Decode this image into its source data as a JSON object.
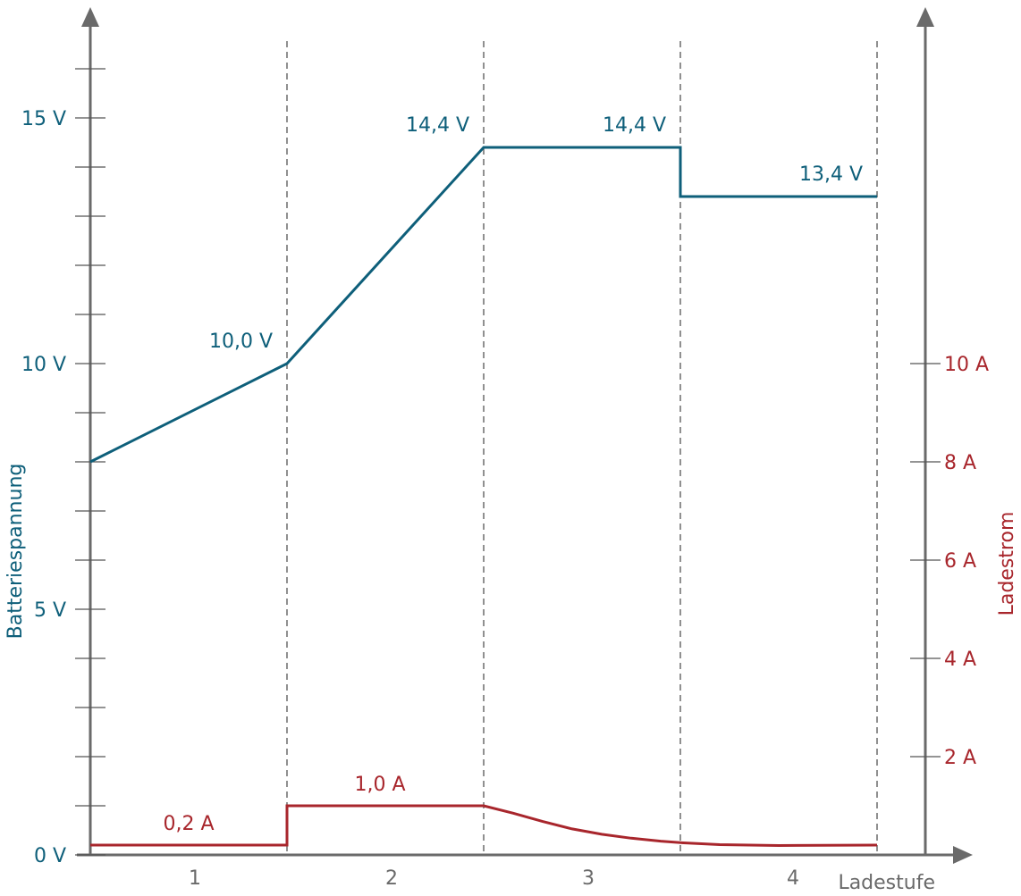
{
  "chart_data": {
    "type": "line",
    "xlabel": "Ladestufe",
    "categories": [
      "1",
      "2",
      "3",
      "4"
    ],
    "y_left": {
      "label": "Batteriespannung",
      "ylim": [
        0,
        16.5
      ],
      "ticks": [
        0,
        1,
        2,
        3,
        4,
        5,
        6,
        7,
        8,
        9,
        10,
        11,
        12,
        13,
        14,
        15,
        16
      ],
      "tick_labels": [
        {
          "value": 0,
          "text": "0 V"
        },
        {
          "value": 5,
          "text": "5 V"
        },
        {
          "value": 10,
          "text": "10 V"
        },
        {
          "value": 15,
          "text": "15 V"
        }
      ]
    },
    "y_right": {
      "label": "Ladestrom",
      "ylim": [
        0,
        16.5
      ],
      "ticks": [
        2,
        4,
        6,
        8,
        10
      ],
      "tick_labels": [
        {
          "value": 2,
          "text": "2 A"
        },
        {
          "value": 4,
          "text": "4 A"
        },
        {
          "value": 6,
          "text": "6 A"
        },
        {
          "value": 8,
          "text": "8 A"
        },
        {
          "value": 10,
          "text": "10 A"
        }
      ]
    },
    "series": [
      {
        "axis": "left",
        "color": "#0e5f7a",
        "points": [
          [
            0,
            8
          ],
          [
            1,
            10
          ],
          [
            2,
            14.4
          ],
          [
            3,
            14.4
          ],
          [
            3,
            13.4
          ],
          [
            4,
            13.4
          ]
        ],
        "annotations": [
          {
            "x": 1,
            "y": 10,
            "text": "10,0 V"
          },
          {
            "x": 2,
            "y": 14.4,
            "text": "14,4 V"
          },
          {
            "x": 3,
            "y": 14.4,
            "text": "14,4 V"
          },
          {
            "x": 4,
            "y": 13.4,
            "text": "13,4 V"
          }
        ]
      },
      {
        "axis": "right",
        "color": "#a8262c",
        "points": [
          [
            0,
            0.2
          ],
          [
            1,
            0.2
          ],
          [
            1,
            1.0
          ],
          [
            2,
            1.0
          ],
          [
            2.15,
            0.85
          ],
          [
            2.3,
            0.68
          ],
          [
            2.45,
            0.53
          ],
          [
            2.6,
            0.42
          ],
          [
            2.75,
            0.34
          ],
          [
            2.9,
            0.28
          ],
          [
            3.0,
            0.25
          ],
          [
            3.2,
            0.21
          ],
          [
            3.5,
            0.19
          ],
          [
            4,
            0.2
          ]
        ],
        "annotations": [
          {
            "x": 0.5,
            "y": 0.2,
            "text": "0,2 A"
          },
          {
            "x": 1.5,
            "y": 1.0,
            "text": "1,0 A"
          }
        ]
      }
    ],
    "stage_boundaries": [
      1,
      2,
      3,
      4
    ],
    "grid": false
  }
}
